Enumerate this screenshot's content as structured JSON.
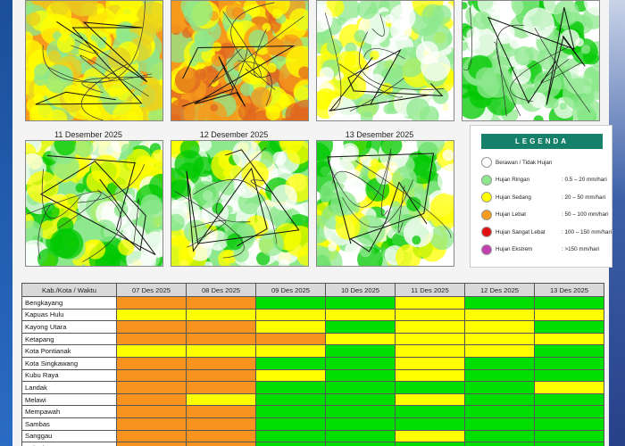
{
  "colors": {
    "berawan": "#ffffff",
    "ringan": "#8ee88e",
    "sedang": "#ffff00",
    "lebat": "#f59a1c",
    "sangat_lebat": "#e01010",
    "ekstrem": "#c040b0",
    "table": {
      "G": "#00e000",
      "Y": "#ffff00",
      "O": "#f7931e"
    }
  },
  "maps": {
    "row1_dates": [
      "",
      "",
      "",
      ""
    ],
    "row2_dates": [
      "11 Desember 2025",
      "12 Desember 2025",
      "13 Desember 2025"
    ]
  },
  "legend": {
    "title": "LEGENDA",
    "items": [
      {
        "name": "Berawan / Tidak Hujan",
        "range": "",
        "color_key": "berawan"
      },
      {
        "name": "Hujan Ringan",
        "range": ": 0.5 – 20 mm/hari",
        "color_key": "ringan"
      },
      {
        "name": "Hujan Sedang",
        "range": ": 20 – 50 mm/hari",
        "color_key": "sedang"
      },
      {
        "name": "Hujan Lebat",
        "range": ": 50 – 100 mm/hari",
        "color_key": "lebat"
      },
      {
        "name": "Hujan Sangat Lebat",
        "range": ": 100 – 150 mm/hari",
        "color_key": "sangat_lebat"
      },
      {
        "name": "Hujan Ekstrem",
        "range": ": >150 mm/hari",
        "color_key": "ekstrem"
      }
    ]
  },
  "table": {
    "headers": [
      "Kab./Kota / Waktu",
      "07 Des 2025",
      "08 Des 2025",
      "09 Des 2025",
      "10 Des 2025",
      "11 Des 2025",
      "12 Des 2025",
      "13 Des 2025"
    ],
    "rows": [
      {
        "name": "Bengkayang",
        "cells": [
          "O",
          "O",
          "G",
          "G",
          "Y",
          "G",
          "G"
        ]
      },
      {
        "name": "Kapuas Hulu",
        "cells": [
          "Y",
          "Y",
          "Y",
          "Y",
          "Y",
          "Y",
          "Y"
        ]
      },
      {
        "name": "Kayong Utara",
        "cells": [
          "O",
          "O",
          "Y",
          "G",
          "Y",
          "Y",
          "G"
        ]
      },
      {
        "name": "Ketapang",
        "cells": [
          "O",
          "O",
          "O",
          "Y",
          "Y",
          "Y",
          "Y"
        ]
      },
      {
        "name": "Kota Pontianak",
        "cells": [
          "Y",
          "Y",
          "Y",
          "G",
          "Y",
          "Y",
          "G"
        ]
      },
      {
        "name": "Kota Singkawang",
        "cells": [
          "O",
          "O",
          "G",
          "G",
          "Y",
          "G",
          "G"
        ]
      },
      {
        "name": "Kubu Raya",
        "cells": [
          "O",
          "O",
          "Y",
          "G",
          "Y",
          "G",
          "G"
        ]
      },
      {
        "name": "Landak",
        "cells": [
          "O",
          "O",
          "G",
          "G",
          "G",
          "G",
          "Y"
        ]
      },
      {
        "name": "Melawi",
        "cells": [
          "O",
          "Y",
          "G",
          "G",
          "Y",
          "G",
          "G"
        ]
      },
      {
        "name": "Mempawah",
        "cells": [
          "O",
          "O",
          "G",
          "G",
          "G",
          "G",
          "G"
        ]
      },
      {
        "name": "Sambas",
        "cells": [
          "O",
          "O",
          "G",
          "G",
          "G",
          "G",
          "G"
        ]
      },
      {
        "name": "Sanggau",
        "cells": [
          "O",
          "O",
          "G",
          "G",
          "Y",
          "G",
          "G"
        ]
      },
      {
        "name": "Sekadau",
        "cells": [
          "O",
          "O",
          "G",
          "G",
          "G",
          "G",
          "G"
        ]
      }
    ]
  }
}
